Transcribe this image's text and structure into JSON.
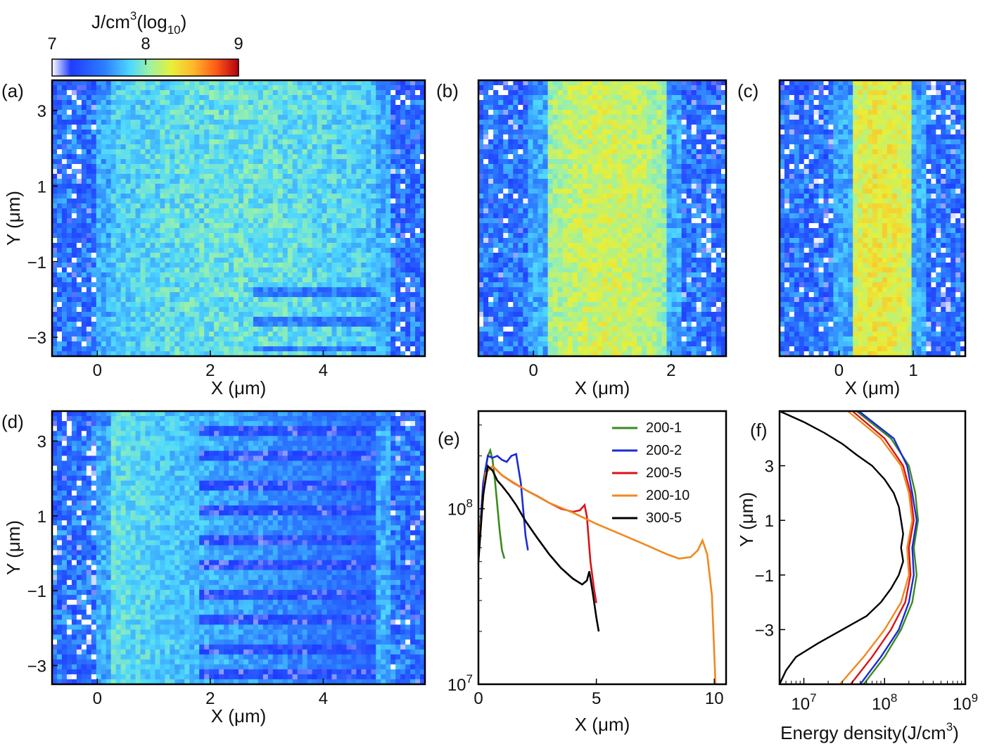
{
  "colorbar": {
    "label_prefix": "J/cm",
    "label_power": "3",
    "label_paren": "(log",
    "label_base": "10",
    "label_close": ")",
    "ticks": [
      "7",
      "8",
      "9"
    ],
    "colors": [
      "#ffffff",
      "#1f3cff",
      "#2d7dff",
      "#4ed8ff",
      "#9cf1a6",
      "#e7f03a",
      "#ffb62a",
      "#ff5a18",
      "#b40010"
    ]
  },
  "chart_data": [
    {
      "id": "a",
      "type": "heatmap",
      "panel_label": "(a)",
      "xlabel": "X (μm)",
      "ylabel": "Y (μm)",
      "xlim": [
        -0.8,
        5.8
      ],
      "ylim": [
        -3.5,
        3.8
      ],
      "xticks": [
        "0",
        "2",
        "4"
      ],
      "xtick_values": [
        0,
        2,
        4
      ],
      "yticks": [
        "3",
        "1",
        "−1",
        "−3"
      ],
      "ytick_values": [
        3,
        1,
        -1,
        -3
      ],
      "description_core": [
        0.2,
        4.9
      ],
      "peak_log": 7.9
    },
    {
      "id": "b",
      "type": "heatmap",
      "panel_label": "(b)",
      "xlabel": "X (μm)",
      "ylabel": "",
      "xlim": [
        -0.8,
        2.8
      ],
      "ylim": [
        -3.5,
        3.8
      ],
      "xticks": [
        "0",
        "2"
      ],
      "xtick_values": [
        0,
        2
      ],
      "yticks": [],
      "ytick_values": [],
      "description_core": [
        0.2,
        1.9
      ],
      "peak_log": 8.2
    },
    {
      "id": "c",
      "type": "heatmap",
      "panel_label": "(c)",
      "xlabel": "X (μm)",
      "ylabel": "",
      "xlim": [
        -0.8,
        1.7
      ],
      "ylim": [
        -3.5,
        3.8
      ],
      "xticks": [
        "0",
        "1"
      ],
      "xtick_values": [
        0,
        1
      ],
      "yticks": [],
      "ytick_values": [],
      "description_core": [
        0.2,
        0.95
      ],
      "peak_log": 8.3
    },
    {
      "id": "d",
      "type": "heatmap",
      "panel_label": "(d)",
      "xlabel": "X (μm)",
      "ylabel": "Y (μm)",
      "xlim": [
        -0.8,
        5.8
      ],
      "ylim": [
        -3.5,
        3.8
      ],
      "xticks": [
        "0",
        "2",
        "4"
      ],
      "xtick_values": [
        0,
        2,
        4
      ],
      "yticks": [
        "3",
        "1",
        "−1",
        "−3"
      ],
      "ytick_values": [
        3,
        1,
        -1,
        -3
      ],
      "description_core": [
        0.2,
        4.9
      ],
      "peak_log": 7.9
    },
    {
      "id": "e",
      "type": "line",
      "panel_label": "(e)",
      "xlabel": "X (μm)",
      "ylabel": "",
      "xlim": [
        0,
        10.5
      ],
      "ylim": [
        10000000.0,
        360000000.0
      ],
      "yscale": "log",
      "xticks": [
        "0",
        "5",
        "10"
      ],
      "xtick_values": [
        0,
        5,
        10
      ],
      "ytick_labels": [
        {
          "base": "10",
          "exp": "7",
          "value": 10000000.0
        },
        {
          "base": "10",
          "exp": "8",
          "value": 100000000.0
        }
      ],
      "legend": "top-right",
      "series": [
        {
          "name": "200-1",
          "color": "#3a8a1e",
          "x": [
            0,
            0.1,
            0.2,
            0.3,
            0.4,
            0.5,
            0.6,
            0.7,
            0.8,
            0.9,
            1.0,
            1.1
          ],
          "y": [
            50000000.0,
            90000000.0,
            135000000.0,
            170000000.0,
            200000000.0,
            215000000.0,
            190000000.0,
            145000000.0,
            105000000.0,
            75000000.0,
            58000000.0,
            52000000.0
          ]
        },
        {
          "name": "200-2",
          "color": "#1a2bd6",
          "x": [
            0,
            0.2,
            0.4,
            0.6,
            0.8,
            1.0,
            1.2,
            1.4,
            1.6,
            1.8,
            2.0,
            2.1
          ],
          "y": [
            55000000.0,
            140000000.0,
            200000000.0,
            195000000.0,
            200000000.0,
            190000000.0,
            185000000.0,
            200000000.0,
            205000000.0,
            140000000.0,
            70000000.0,
            58000000.0
          ]
        },
        {
          "name": "200-5",
          "color": "#d8141a",
          "x": [
            0,
            0.3,
            0.6,
            1.0,
            1.5,
            2.0,
            2.5,
            3.0,
            3.5,
            4.0,
            4.3,
            4.5,
            4.6,
            4.75,
            4.9,
            5.0
          ],
          "y": [
            60000000.0,
            160000000.0,
            175000000.0,
            155000000.0,
            140000000.0,
            128000000.0,
            118000000.0,
            108000000.0,
            100000000.0,
            96000000.0,
            98000000.0,
            105000000.0,
            90000000.0,
            50000000.0,
            35000000.0,
            29000000.0
          ]
        },
        {
          "name": "200-10",
          "color": "#f0891e",
          "x": [
            0,
            0.3,
            0.6,
            1.0,
            2.0,
            3.0,
            4.0,
            5.0,
            6.0,
            7.0,
            8.0,
            8.5,
            9.0,
            9.3,
            9.5,
            9.7,
            9.9,
            10.0,
            10.05
          ],
          "y": [
            60000000.0,
            160000000.0,
            175000000.0,
            155000000.0,
            128000000.0,
            108000000.0,
            95000000.0,
            82000000.0,
            72000000.0,
            63000000.0,
            55000000.0,
            52000000.0,
            53000000.0,
            58000000.0,
            66000000.0,
            55000000.0,
            32000000.0,
            15000000.0,
            10000000.0
          ]
        },
        {
          "name": "300-5",
          "color": "#000000",
          "x": [
            0,
            0.2,
            0.4,
            0.6,
            0.8,
            1.0,
            1.3,
            1.6,
            2.0,
            2.5,
            3.0,
            3.5,
            4.0,
            4.4,
            4.6,
            4.7,
            4.85,
            5.0,
            5.1
          ],
          "y": [
            50000000.0,
            120000000.0,
            175000000.0,
            165000000.0,
            145000000.0,
            135000000.0,
            120000000.0,
            105000000.0,
            85000000.0,
            68000000.0,
            55000000.0,
            46000000.0,
            40000000.0,
            37000000.0,
            39000000.0,
            44000000.0,
            33000000.0,
            24000000.0,
            20000000.0
          ]
        }
      ]
    },
    {
      "id": "f",
      "type": "line",
      "panel_label": "(f)",
      "xlabel_prefix": "Energy density(J/cm",
      "xlabel_power": "3",
      "xlabel_close": ")",
      "ylabel": "Y (μm)",
      "xlim": [
        5000000.0,
        1000000000.0
      ],
      "xscale": "log",
      "ylim": [
        -5,
        5
      ],
      "xtick_labels": [
        {
          "base": "10",
          "exp": "7",
          "value": 10000000.0
        },
        {
          "base": "10",
          "exp": "8",
          "value": 100000000.0
        },
        {
          "base": "10",
          "exp": "9",
          "value": 1000000000.0
        }
      ],
      "yticks": [
        "3",
        "1",
        "−1",
        "−3"
      ],
      "ytick_values": [
        3,
        1,
        -1,
        -3
      ],
      "series": [
        {
          "name": "200-1",
          "color": "#3a8a1e",
          "y": [
            5,
            4,
            3,
            2,
            1,
            0,
            -1,
            -2,
            -3,
            -4,
            -5
          ],
          "x": [
            45000000.0,
            120000000.0,
            200000000.0,
            240000000.0,
            260000000.0,
            230000000.0,
            250000000.0,
            220000000.0,
            160000000.0,
            100000000.0,
            55000000.0
          ]
        },
        {
          "name": "200-2",
          "color": "#1a2bd6",
          "y": [
            5,
            4,
            3,
            2,
            1,
            0,
            -1,
            -2,
            -3,
            -4,
            -5
          ],
          "x": [
            48000000.0,
            130000000.0,
            190000000.0,
            220000000.0,
            250000000.0,
            220000000.0,
            230000000.0,
            200000000.0,
            150000000.0,
            90000000.0,
            50000000.0
          ]
        },
        {
          "name": "200-5",
          "color": "#d8141a",
          "y": [
            5,
            4,
            3,
            2,
            1,
            0,
            -1,
            -2,
            -3,
            -4,
            -5
          ],
          "x": [
            40000000.0,
            100000000.0,
            170000000.0,
            210000000.0,
            230000000.0,
            200000000.0,
            210000000.0,
            180000000.0,
            120000000.0,
            70000000.0,
            38000000.0
          ]
        },
        {
          "name": "200-10",
          "color": "#f0891e",
          "y": [
            5,
            4,
            3,
            2,
            1,
            0,
            -1,
            -2,
            -3,
            -4,
            -5
          ],
          "x": [
            35000000.0,
            90000000.0,
            160000000.0,
            200000000.0,
            220000000.0,
            190000000.0,
            200000000.0,
            160000000.0,
            100000000.0,
            55000000.0,
            28000000.0
          ]
        },
        {
          "name": "300-5",
          "color": "#000000",
          "y": [
            5,
            4.6,
            4.2,
            3.8,
            3.4,
            3.0,
            2.5,
            2.0,
            1.5,
            1.0,
            0.5,
            0,
            -0.5,
            -1.0,
            -1.5,
            -2.0,
            -2.5,
            -3.0,
            -3.5,
            -4.0,
            -4.5,
            -5.0
          ],
          "x": [
            5000000.0,
            10000000.0,
            18000000.0,
            30000000.0,
            45000000.0,
            70000000.0,
            100000000.0,
            130000000.0,
            150000000.0,
            160000000.0,
            170000000.0,
            160000000.0,
            170000000.0,
            150000000.0,
            120000000.0,
            90000000.0,
            60000000.0,
            30000000.0,
            15000000.0,
            8000000.0,
            6000000.0,
            5000000.0
          ]
        }
      ]
    }
  ]
}
